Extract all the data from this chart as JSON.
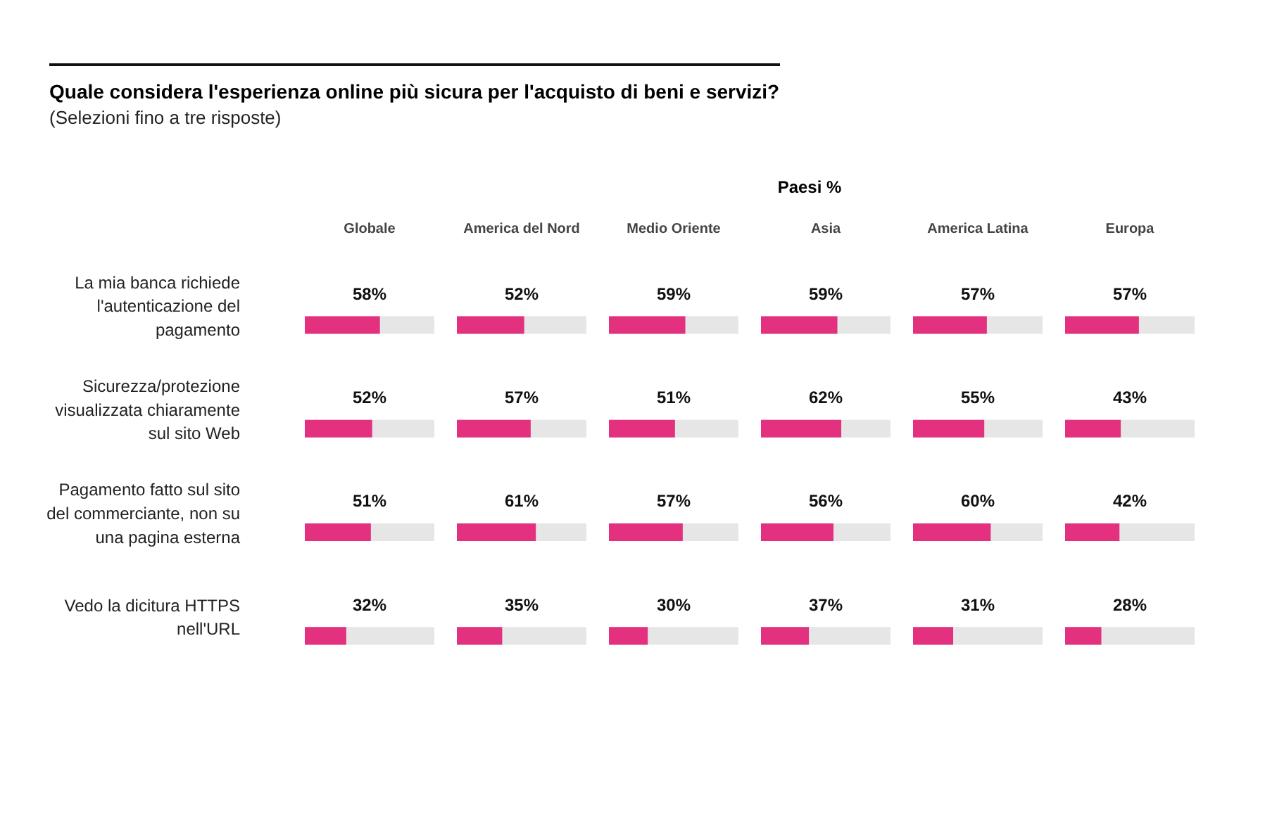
{
  "chart_data": [
    {
      "type": "bar",
      "orientation": "horizontal",
      "title": "Globale",
      "annotations": [
        "Quale considera l'esperienza online più sicura per l'acquisto di beni e servizi?",
        "(Selezioni fino a tre risposte)",
        "Paesi %"
      ],
      "categories": [
        "La mia banca richiede l'autenticazione del pagamento",
        "Sicurezza/protezione visualizzata chiaramente sul sito Web",
        "Pagamento fatto sul sito del commerciante, non su una pagina esterna",
        "Vedo la dicitura HTTPS nell'URL"
      ],
      "values": [
        58,
        52,
        51,
        32
      ],
      "value_labels": [
        "58%",
        "52%",
        "51%",
        "32%"
      ],
      "color": "#e4317f",
      "xlim": [
        0,
        100
      ],
      "tick_labels": "y"
    },
    {
      "type": "bar",
      "orientation": "horizontal",
      "title": "America del Nord",
      "values": [
        52,
        57,
        61,
        35
      ],
      "value_labels": [
        "52%",
        "57%",
        "61%",
        "35%"
      ],
      "color": "#e4317f",
      "xlim": [
        0,
        100
      ],
      "tick_labels": false
    },
    {
      "type": "bar",
      "orientation": "horizontal",
      "title": "Medio Oriente",
      "values": [
        59,
        51,
        57,
        30
      ],
      "value_labels": [
        "59%",
        "51%",
        "57%",
        "30%"
      ],
      "color": "#e4317f",
      "xlim": [
        0,
        100
      ],
      "tick_labels": false
    },
    {
      "type": "bar",
      "orientation": "horizontal",
      "title": "Asia",
      "values": [
        59,
        62,
        56,
        37
      ],
      "value_labels": [
        "59%",
        "62%",
        "56%",
        "37%"
      ],
      "color": "#e4317f",
      "xlim": [
        0,
        100
      ],
      "tick_labels": false
    },
    {
      "type": "bar",
      "orientation": "horizontal",
      "title": "America Latina",
      "values": [
        57,
        55,
        60,
        31
      ],
      "value_labels": [
        "57%",
        "55%",
        "60%",
        "31%"
      ],
      "color": "#e4317f",
      "xlim": [
        0,
        100
      ],
      "tick_labels": false
    },
    {
      "type": "bar",
      "orientation": "horizontal",
      "title": "Europa",
      "values": [
        57,
        43,
        42,
        28
      ],
      "value_labels": [
        "57%",
        "43%",
        "42%",
        "28%"
      ],
      "color": "#e4317f",
      "xlim": [
        0,
        100
      ],
      "tick_labels": false
    }
  ]
}
